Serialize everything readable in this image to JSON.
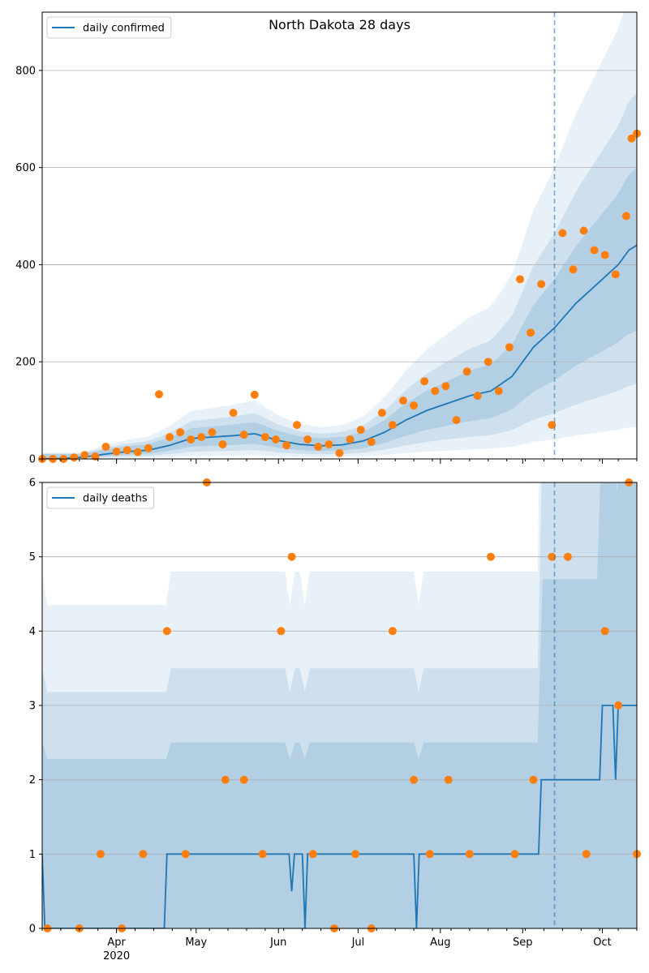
{
  "chart_data": [
    {
      "type": "line",
      "title": "North Dakota 28 days",
      "xlabel": "",
      "ylabel": "",
      "ylim": [
        0,
        920
      ],
      "xlim": [
        "2020-03-04",
        "2020-10-14"
      ],
      "grid": "horizontal",
      "legend_position": "top-left",
      "forecast_start": "2020-09-13",
      "y_ticks": [
        "0",
        "200",
        "400",
        "600",
        "800"
      ],
      "series": [
        {
          "name": "daily confirmed",
          "kind": "model-median",
          "color": "#1f77b4",
          "x": [
            "2020-03-04",
            "2020-03-12",
            "2020-03-20",
            "2020-03-28",
            "2020-04-05",
            "2020-04-13",
            "2020-04-21",
            "2020-04-29",
            "2020-05-07",
            "2020-05-15",
            "2020-05-23",
            "2020-06-01",
            "2020-06-09",
            "2020-06-17",
            "2020-06-25",
            "2020-07-03",
            "2020-07-11",
            "2020-07-19",
            "2020-07-27",
            "2020-08-04",
            "2020-08-12",
            "2020-08-20",
            "2020-08-28",
            "2020-09-05",
            "2020-09-13",
            "2020-09-21",
            "2020-09-29",
            "2020-10-07",
            "2020-10-11",
            "2020-10-14"
          ],
          "values": [
            0,
            1,
            4,
            10,
            15,
            18,
            28,
            42,
            45,
            48,
            52,
            38,
            30,
            27,
            29,
            37,
            55,
            80,
            100,
            115,
            130,
            140,
            170,
            230,
            270,
            320,
            360,
            400,
            430,
            440
          ]
        },
        {
          "name": "",
          "kind": "observed",
          "color": "#ff7f0e",
          "x": [
            "2020-03-04",
            "2020-03-08",
            "2020-03-12",
            "2020-03-16",
            "2020-03-20",
            "2020-03-24",
            "2020-03-28",
            "2020-04-01",
            "2020-04-05",
            "2020-04-09",
            "2020-04-13",
            "2020-04-17",
            "2020-04-21",
            "2020-04-25",
            "2020-04-29",
            "2020-05-03",
            "2020-05-07",
            "2020-05-11",
            "2020-05-15",
            "2020-05-19",
            "2020-05-23",
            "2020-05-27",
            "2020-05-31",
            "2020-06-04",
            "2020-06-08",
            "2020-06-12",
            "2020-06-16",
            "2020-06-20",
            "2020-06-24",
            "2020-06-28",
            "2020-07-02",
            "2020-07-06",
            "2020-07-10",
            "2020-07-14",
            "2020-07-18",
            "2020-07-22",
            "2020-07-26",
            "2020-07-30",
            "2020-08-03",
            "2020-08-07",
            "2020-08-11",
            "2020-08-15",
            "2020-08-19",
            "2020-08-23",
            "2020-08-27",
            "2020-08-31",
            "2020-09-04",
            "2020-09-08",
            "2020-09-12",
            "2020-09-16",
            "2020-09-20",
            "2020-09-24",
            "2020-09-28",
            "2020-10-02",
            "2020-10-06",
            "2020-10-10",
            "2020-10-12",
            "2020-10-14"
          ],
          "values": [
            0,
            0,
            0,
            3,
            8,
            5,
            25,
            15,
            18,
            14,
            22,
            133,
            45,
            55,
            40,
            45,
            55,
            30,
            95,
            50,
            132,
            45,
            40,
            28,
            70,
            40,
            25,
            30,
            12,
            40,
            60,
            35,
            95,
            70,
            120,
            110,
            160,
            140,
            150,
            80,
            180,
            130,
            200,
            140,
            230,
            370,
            260,
            360,
            70,
            465,
            390,
            470,
            430,
            420,
            380,
            500,
            660,
            670
          ]
        }
      ]
    },
    {
      "type": "line",
      "title": "",
      "xlabel": "",
      "ylabel": "",
      "ylim": [
        0,
        6
      ],
      "xlim": [
        "2020-03-04",
        "2020-10-14"
      ],
      "grid": "horizontal",
      "legend_position": "top-left",
      "forecast_start": "2020-09-13",
      "y_ticks": [
        "0",
        "1",
        "2",
        "3",
        "4",
        "5",
        "6"
      ],
      "x_ticks": [
        "Apr",
        "May",
        "Jun",
        "Jul",
        "Aug",
        "Sep",
        "Oct"
      ],
      "x_tick_year": "2020",
      "series": [
        {
          "name": "daily deaths",
          "kind": "model-median",
          "color": "#1f77b4",
          "x": [
            "2020-03-04",
            "2020-03-05",
            "2020-04-19",
            "2020-04-20",
            "2020-06-05",
            "2020-06-06",
            "2020-06-07",
            "2020-06-10",
            "2020-06-11",
            "2020-06-12",
            "2020-07-22",
            "2020-07-23",
            "2020-07-24",
            "2020-09-07",
            "2020-09-08",
            "2020-09-30",
            "2020-10-01",
            "2020-10-05",
            "2020-10-06",
            "2020-10-07",
            "2020-10-14"
          ],
          "values": [
            1,
            0,
            0,
            1,
            1,
            0.5,
            1,
            1,
            0,
            1,
            1,
            0,
            1,
            1,
            2,
            2,
            3,
            3,
            2,
            3,
            3
          ]
        },
        {
          "name": "",
          "kind": "observed",
          "color": "#ff7f0e",
          "x": [
            "2020-03-06",
            "2020-03-18",
            "2020-03-26",
            "2020-04-03",
            "2020-04-11",
            "2020-04-20",
            "2020-04-27",
            "2020-05-05",
            "2020-05-12",
            "2020-05-19",
            "2020-05-26",
            "2020-06-02",
            "2020-06-06",
            "2020-06-14",
            "2020-06-22",
            "2020-06-30",
            "2020-07-06",
            "2020-07-14",
            "2020-07-22",
            "2020-07-28",
            "2020-08-04",
            "2020-08-12",
            "2020-08-20",
            "2020-08-29",
            "2020-09-05",
            "2020-09-12",
            "2020-09-18",
            "2020-09-25",
            "2020-10-02",
            "2020-10-07",
            "2020-10-11",
            "2020-10-14"
          ],
          "values": [
            0,
            0,
            1,
            0,
            1,
            4,
            1,
            6,
            2,
            2,
            1,
            4,
            5,
            1,
            0,
            1,
            0,
            4,
            2,
            1,
            2,
            1,
            5,
            1,
            2,
            5,
            5,
            1,
            4,
            3,
            6,
            1
          ]
        }
      ]
    }
  ]
}
